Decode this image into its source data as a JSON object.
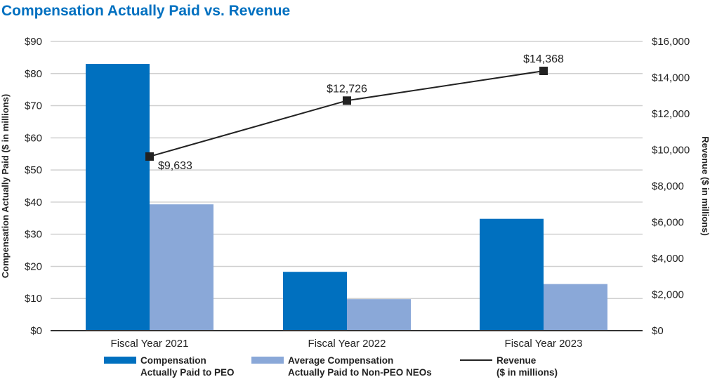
{
  "chart_data": {
    "type": "bar+line",
    "title": "Compensation Actually Paid vs. Revenue",
    "categories": [
      "Fiscal Year 2021",
      "Fiscal Year 2022",
      "Fiscal Year 2023"
    ],
    "ylabel": "Compensation Actually Paid ($ in millions)",
    "y2label": "Revenue ($ in millions)",
    "ylim": [
      0,
      90
    ],
    "y2lim": [
      0,
      16000
    ],
    "yticks": [
      "$0",
      "$10",
      "$20",
      "$30",
      "$40",
      "$50",
      "$60",
      "$70",
      "$80",
      "$90"
    ],
    "y2ticks": [
      "$0",
      "$2,000",
      "$4,000",
      "$6,000",
      "$8,000",
      "$10,000",
      "$12,000",
      "$14,000",
      "$16,000"
    ],
    "grid": true,
    "legend": "bottom",
    "series": [
      {
        "name": "Compensation Actually Paid to PEO",
        "legend_lines": [
          "Compensation",
          "Actually Paid to PEO"
        ],
        "type": "bar",
        "axis": "left",
        "color": "#0070bf",
        "values": [
          83.0,
          18.3,
          34.8
        ]
      },
      {
        "name": "Average Compensation Actually Paid to Non-PEO NEOs",
        "legend_lines": [
          "Average Compensation",
          "Actually Paid to Non-PEO NEOs"
        ],
        "type": "bar",
        "axis": "left",
        "color": "#8aa8d8",
        "values": [
          39.3,
          9.8,
          14.5
        ]
      },
      {
        "name": "Revenue ($ in millions)",
        "legend_lines": [
          "Revenue",
          "($ in millions)"
        ],
        "type": "line",
        "axis": "right",
        "color": "#222222",
        "values": [
          9633,
          12726,
          14368
        ],
        "labels": [
          "$9,633",
          "$12,726",
          "$14,368"
        ]
      }
    ]
  }
}
